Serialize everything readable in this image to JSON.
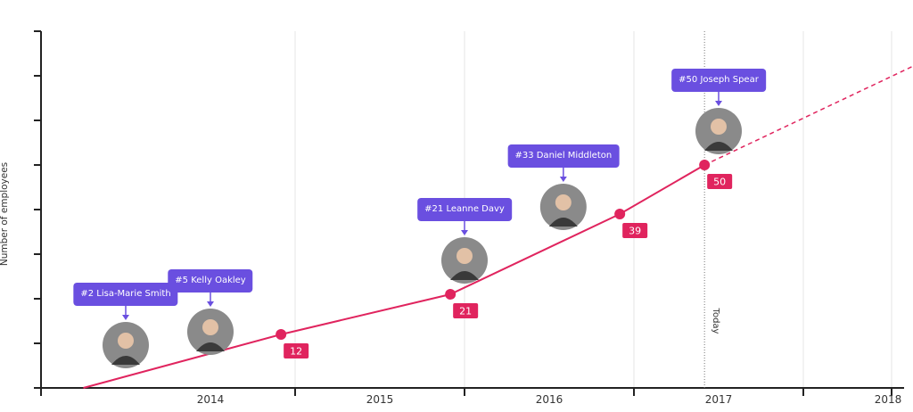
{
  "chart_data": {
    "type": "line",
    "ylabel": "Number of employees",
    "x_categories": [
      "2014",
      "2015",
      "2016",
      "2017",
      "2018"
    ],
    "series": [
      {
        "values": [
          {
            "x": "2013-10",
            "y": 0
          },
          {
            "x": "2014-12",
            "y": 12
          },
          {
            "x": "2015-12",
            "y": 21
          },
          {
            "x": "2016-12",
            "y": 39
          },
          {
            "x": "2017-06",
            "y": 50
          }
        ],
        "data_labels": [
          "12",
          "21",
          "39",
          "50"
        ]
      },
      {
        "style": "dashed",
        "values": [
          {
            "x": "2017-06",
            "y": 50
          },
          {
            "x": "2018-12",
            "y": 77
          }
        ]
      }
    ],
    "ylim": [
      0,
      80
    ],
    "annotations": {
      "today_label": "Today",
      "today_x": "2017-06"
    },
    "milestones": [
      {
        "label": "#2 Lisa-Marie Smith",
        "x": "2014-01",
        "employees": 2
      },
      {
        "label": "#5 Kelly Oakley",
        "x": "2014-07",
        "employees": 5
      },
      {
        "label": "#21 Leanne Davy",
        "x": "2016-01",
        "employees": 21
      },
      {
        "label": "#33 Daniel Middleton",
        "x": "2016-08",
        "employees": 33
      },
      {
        "label": "#50 Joseph Spear",
        "x": "2017-07",
        "employees": 50
      }
    ]
  },
  "colors": {
    "line": "#e0245e",
    "callout": "#6a4fe0",
    "axis": "#222222",
    "grid": "#e6e6e6"
  },
  "icons": {
    "end_icon": "rocket-icon"
  }
}
